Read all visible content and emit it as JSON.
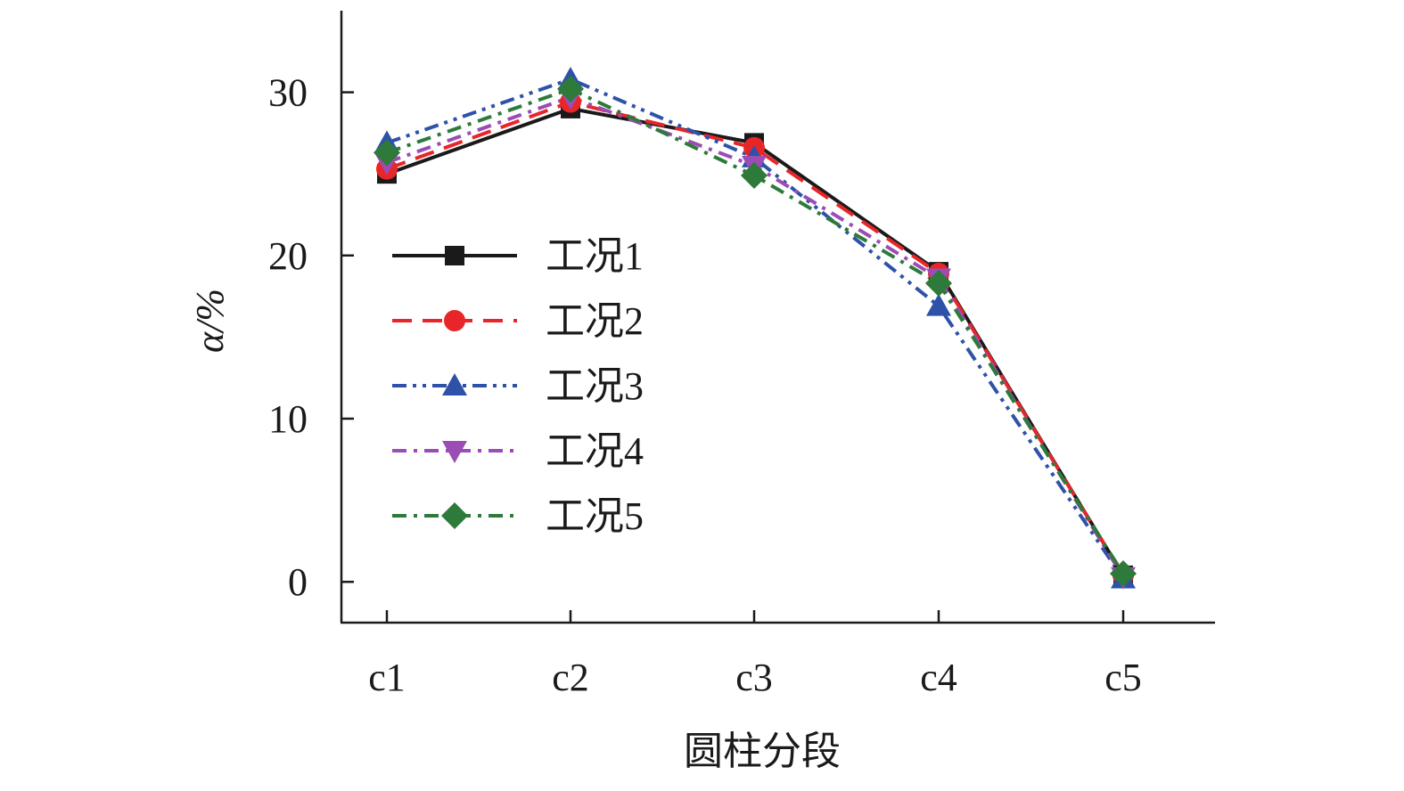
{
  "chart_data": {
    "type": "line",
    "xlabel": "圆柱分段",
    "ylabel": "α/%",
    "categories": [
      "c1",
      "c2",
      "c3",
      "c4",
      "c5"
    ],
    "ylim": [
      -2.5,
      35
    ],
    "yticks": [
      0,
      10,
      20,
      30
    ],
    "grid": false,
    "legend_position": "center-left",
    "series": [
      {
        "name": "工况1",
        "values": [
          25.0,
          29.0,
          26.9,
          19.0,
          0.4
        ],
        "color": "#1a1a1a",
        "line_style": "solid",
        "marker": "square"
      },
      {
        "name": "工况2",
        "values": [
          25.3,
          29.4,
          26.6,
          18.9,
          0.4
        ],
        "color": "#e8262a",
        "line_style": "dashed",
        "marker": "circle"
      },
      {
        "name": "工况3",
        "values": [
          26.9,
          30.8,
          26.0,
          16.9,
          0.2
        ],
        "color": "#2d52a8",
        "line_style": "dash-dot-dot",
        "marker": "triangle-up"
      },
      {
        "name": "工况4",
        "values": [
          25.7,
          29.7,
          25.5,
          18.6,
          0.3
        ],
        "color": "#9b4db5",
        "line_style": "dash-dot",
        "marker": "triangle-down"
      },
      {
        "name": "工况5",
        "values": [
          26.3,
          30.2,
          24.9,
          18.3,
          0.5
        ],
        "color": "#2e7a3a",
        "line_style": "dash-dot",
        "marker": "diamond"
      }
    ]
  }
}
